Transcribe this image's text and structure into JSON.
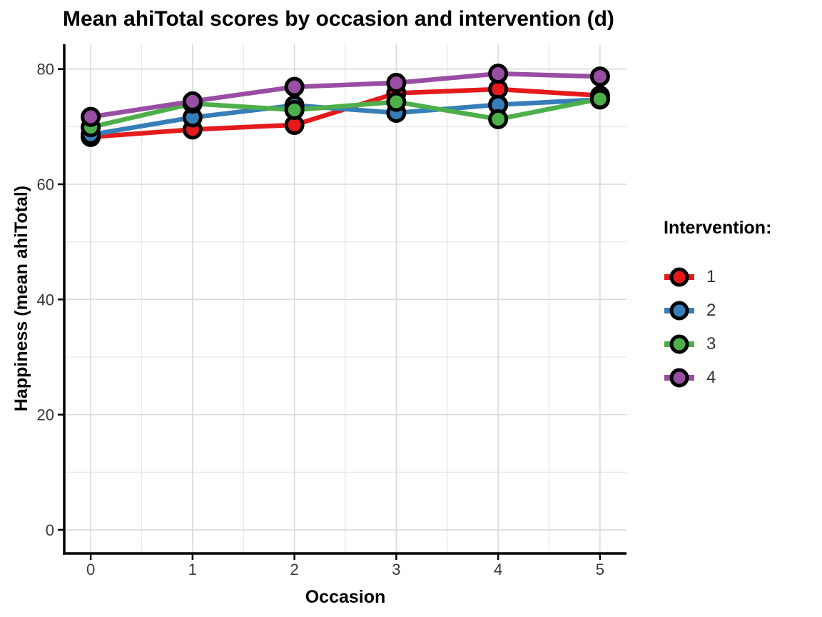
{
  "chart_data": {
    "type": "line",
    "title": "Mean ahiTotal scores by occasion and intervention (d)",
    "xlabel": "Occasion",
    "ylabel": "Happiness (mean ahiTotal)",
    "x": [
      0,
      1,
      2,
      3,
      4,
      5
    ],
    "xticks": [
      "0",
      "1",
      "2",
      "3",
      "4",
      "5"
    ],
    "xtick_values": [
      0,
      1,
      2,
      3,
      4,
      5
    ],
    "yticks": [
      "0",
      "20",
      "40",
      "60",
      "80"
    ],
    "ytick_values": [
      0,
      20,
      40,
      60,
      80
    ],
    "xlim": [
      -0.26,
      5.26
    ],
    "ylim": [
      -4.1,
      84.3
    ],
    "grid": {
      "major": true,
      "minor": true,
      "x_minor": [
        0.5,
        1.5,
        2.5,
        3.5,
        4.5
      ],
      "y_minor": [
        10,
        30,
        50,
        70
      ]
    },
    "legend": {
      "title": "Intervention:",
      "position": "right"
    },
    "series": [
      {
        "name": "1",
        "color": "#E41A1C",
        "values": [
          68.2,
          69.5,
          70.3,
          75.8,
          76.5,
          75.4
        ]
      },
      {
        "name": "2",
        "color": "#377EB8",
        "values": [
          68.6,
          71.6,
          73.7,
          72.4,
          73.8,
          74.7
        ]
      },
      {
        "name": "3",
        "color": "#4DAF4A",
        "values": [
          69.9,
          74.0,
          72.9,
          74.3,
          71.3,
          74.8
        ]
      },
      {
        "name": "4",
        "color": "#984EA3",
        "values": [
          71.7,
          74.4,
          76.9,
          77.6,
          79.2,
          78.7
        ]
      }
    ],
    "styles": {
      "axis_color": "#000000",
      "tick_label_color": "#383838",
      "axis_title_color": "#000000",
      "grid_major_color": "#d9d9d9",
      "grid_minor_color": "#e7e7e7",
      "point_stroke": "#000000"
    }
  }
}
